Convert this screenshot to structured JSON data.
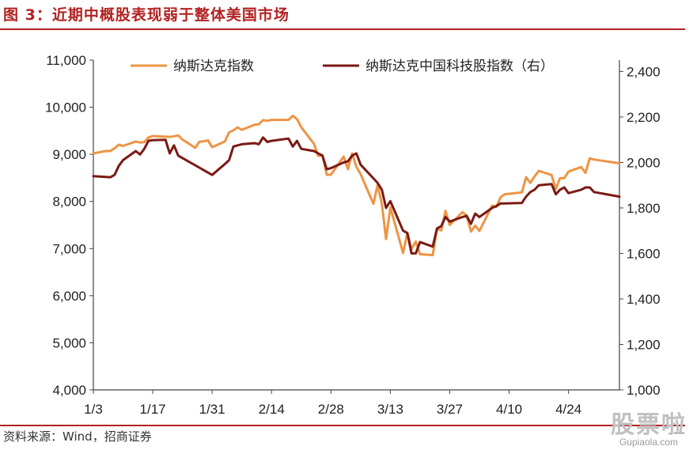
{
  "header": {
    "title": "图 3：近期中概股表现弱于整体美国市场"
  },
  "footer": {
    "source": "资料来源：Wind，招商证券"
  },
  "watermark": {
    "text": "股票啦",
    "url": "Gupiaola.com"
  },
  "colors": {
    "accent": "#b22222",
    "nasdaq": "#ee9444",
    "china_tech": "#7b1a14"
  },
  "chart_data": {
    "type": "line",
    "title": "",
    "legend_position": "top",
    "grid": false,
    "x_ticks": [
      "1/3",
      "1/17",
      "1/31",
      "2/14",
      "2/28",
      "3/13",
      "3/27",
      "4/10",
      "4/24"
    ],
    "x_domain": [
      "2020-01-03",
      "2020-05-06"
    ],
    "left_axis": {
      "ticks": [
        "4,000",
        "5,000",
        "6,000",
        "7,000",
        "8,000",
        "9,000",
        "10,000",
        "11,000"
      ],
      "range": [
        4000,
        11000
      ]
    },
    "right_axis": {
      "ticks": [
        "1,000",
        "1,200",
        "1,400",
        "1,600",
        "1,800",
        "2,000",
        "2,200",
        "2,400"
      ],
      "range": [
        1000,
        2450
      ]
    },
    "series": [
      {
        "name": "纳斯达克指数",
        "axis": "left",
        "points": [
          [
            "2020-01-03",
            9020
          ],
          [
            "2020-01-06",
            9071
          ],
          [
            "2020-01-07",
            9069
          ],
          [
            "2020-01-08",
            9129
          ],
          [
            "2020-01-09",
            9203
          ],
          [
            "2020-01-10",
            9179
          ],
          [
            "2020-01-13",
            9273
          ],
          [
            "2020-01-14",
            9251
          ],
          [
            "2020-01-15",
            9258
          ],
          [
            "2020-01-16",
            9357
          ],
          [
            "2020-01-17",
            9389
          ],
          [
            "2020-01-21",
            9370
          ],
          [
            "2020-01-22",
            9383
          ],
          [
            "2020-01-23",
            9402
          ],
          [
            "2020-01-24",
            9315
          ],
          [
            "2020-01-27",
            9139
          ],
          [
            "2020-01-28",
            9270
          ],
          [
            "2020-01-29",
            9275
          ],
          [
            "2020-01-30",
            9298
          ],
          [
            "2020-01-31",
            9151
          ],
          [
            "2020-02-03",
            9273
          ],
          [
            "2020-02-04",
            9467
          ],
          [
            "2020-02-05",
            9509
          ],
          [
            "2020-02-06",
            9572
          ],
          [
            "2020-02-07",
            9521
          ],
          [
            "2020-02-10",
            9628
          ],
          [
            "2020-02-11",
            9638
          ],
          [
            "2020-02-12",
            9726
          ],
          [
            "2020-02-13",
            9712
          ],
          [
            "2020-02-14",
            9731
          ],
          [
            "2020-02-18",
            9733
          ],
          [
            "2020-02-19",
            9817
          ],
          [
            "2020-02-20",
            9751
          ],
          [
            "2020-02-21",
            9577
          ],
          [
            "2020-02-24",
            9221
          ],
          [
            "2020-02-25",
            8966
          ],
          [
            "2020-02-26",
            8980
          ],
          [
            "2020-02-27",
            8566
          ],
          [
            "2020-02-28",
            8567
          ],
          [
            "2020-03-02",
            8952
          ],
          [
            "2020-03-03",
            8684
          ],
          [
            "2020-03-04",
            9019
          ],
          [
            "2020-03-05",
            8738
          ],
          [
            "2020-03-06",
            8576
          ],
          [
            "2020-03-09",
            7950
          ],
          [
            "2020-03-10",
            8344
          ],
          [
            "2020-03-11",
            7952
          ],
          [
            "2020-03-12",
            7201
          ],
          [
            "2020-03-13",
            7875
          ],
          [
            "2020-03-16",
            6905
          ],
          [
            "2020-03-17",
            7335
          ],
          [
            "2020-03-18",
            6989
          ],
          [
            "2020-03-19",
            7150
          ],
          [
            "2020-03-20",
            6880
          ],
          [
            "2020-03-23",
            6860
          ],
          [
            "2020-03-24",
            7418
          ],
          [
            "2020-03-25",
            7384
          ],
          [
            "2020-03-26",
            7798
          ],
          [
            "2020-03-27",
            7502
          ],
          [
            "2020-03-30",
            7774
          ],
          [
            "2020-03-31",
            7700
          ],
          [
            "2020-04-01",
            7361
          ],
          [
            "2020-04-02",
            7487
          ],
          [
            "2020-04-03",
            7374
          ],
          [
            "2020-04-06",
            7913
          ],
          [
            "2020-04-07",
            7887
          ],
          [
            "2020-04-08",
            8091
          ],
          [
            "2020-04-09",
            8153
          ],
          [
            "2020-04-13",
            8192
          ],
          [
            "2020-04-14",
            8516
          ],
          [
            "2020-04-15",
            8393
          ],
          [
            "2020-04-16",
            8533
          ],
          [
            "2020-04-17",
            8650
          ],
          [
            "2020-04-20",
            8561
          ],
          [
            "2020-04-21",
            8263
          ],
          [
            "2020-04-22",
            8495
          ],
          [
            "2020-04-23",
            8494
          ],
          [
            "2020-04-24",
            8634
          ],
          [
            "2020-04-27",
            8730
          ],
          [
            "2020-04-28",
            8607
          ],
          [
            "2020-04-29",
            8915
          ],
          [
            "2020-04-30",
            8890
          ],
          [
            "2020-05-06",
            8810
          ]
        ]
      },
      {
        "name": "纳斯达克中国科技股指数（右）",
        "axis": "right",
        "points": [
          [
            "2020-01-03",
            1940
          ],
          [
            "2020-01-06",
            1936
          ],
          [
            "2020-01-07",
            1935
          ],
          [
            "2020-01-08",
            1945
          ],
          [
            "2020-01-09",
            1985
          ],
          [
            "2020-01-10",
            2010
          ],
          [
            "2020-01-13",
            2050
          ],
          [
            "2020-01-14",
            2035
          ],
          [
            "2020-01-15",
            2060
          ],
          [
            "2020-01-16",
            2095
          ],
          [
            "2020-01-17",
            2098
          ],
          [
            "2020-01-20",
            2100
          ],
          [
            "2020-01-21",
            2040
          ],
          [
            "2020-01-22",
            2075
          ],
          [
            "2020-01-23",
            2030
          ],
          [
            "2020-01-31",
            1945
          ],
          [
            "2020-02-03",
            1993
          ],
          [
            "2020-02-04",
            2010
          ],
          [
            "2020-02-05",
            2070
          ],
          [
            "2020-02-06",
            2075
          ],
          [
            "2020-02-07",
            2080
          ],
          [
            "2020-02-10",
            2085
          ],
          [
            "2020-02-11",
            2080
          ],
          [
            "2020-02-12",
            2110
          ],
          [
            "2020-02-13",
            2090
          ],
          [
            "2020-02-14",
            2095
          ],
          [
            "2020-02-18",
            2105
          ],
          [
            "2020-02-19",
            2070
          ],
          [
            "2020-02-20",
            2095
          ],
          [
            "2020-02-21",
            2060
          ],
          [
            "2020-02-24",
            2050
          ],
          [
            "2020-02-25",
            2040
          ],
          [
            "2020-02-26",
            2030
          ],
          [
            "2020-02-27",
            1970
          ],
          [
            "2020-02-28",
            1975
          ],
          [
            "2020-03-02",
            2000
          ],
          [
            "2020-03-03",
            2005
          ],
          [
            "2020-03-04",
            2030
          ],
          [
            "2020-03-05",
            2040
          ],
          [
            "2020-03-06",
            1990
          ],
          [
            "2020-03-09",
            1930
          ],
          [
            "2020-03-10",
            1910
          ],
          [
            "2020-03-11",
            1880
          ],
          [
            "2020-03-12",
            1800
          ],
          [
            "2020-03-13",
            1830
          ],
          [
            "2020-03-16",
            1700
          ],
          [
            "2020-03-17",
            1690
          ],
          [
            "2020-03-18",
            1600
          ],
          [
            "2020-03-19",
            1600
          ],
          [
            "2020-03-20",
            1650
          ],
          [
            "2020-03-23",
            1630
          ],
          [
            "2020-03-24",
            1710
          ],
          [
            "2020-03-25",
            1720
          ],
          [
            "2020-03-26",
            1760
          ],
          [
            "2020-03-27",
            1740
          ],
          [
            "2020-03-30",
            1760
          ],
          [
            "2020-03-31",
            1765
          ],
          [
            "2020-04-01",
            1730
          ],
          [
            "2020-04-02",
            1775
          ],
          [
            "2020-04-03",
            1760
          ],
          [
            "2020-04-06",
            1800
          ],
          [
            "2020-04-07",
            1808
          ],
          [
            "2020-04-08",
            1820
          ],
          [
            "2020-04-09",
            1820
          ],
          [
            "2020-04-13",
            1822
          ],
          [
            "2020-04-14",
            1850
          ],
          [
            "2020-04-15",
            1870
          ],
          [
            "2020-04-16",
            1880
          ],
          [
            "2020-04-17",
            1900
          ],
          [
            "2020-04-20",
            1905
          ],
          [
            "2020-04-21",
            1860
          ],
          [
            "2020-04-22",
            1880
          ],
          [
            "2020-04-23",
            1890
          ],
          [
            "2020-04-24",
            1865
          ],
          [
            "2020-04-27",
            1880
          ],
          [
            "2020-04-28",
            1890
          ],
          [
            "2020-04-29",
            1890
          ],
          [
            "2020-04-30",
            1870
          ],
          [
            "2020-05-06",
            1850
          ]
        ]
      }
    ]
  }
}
